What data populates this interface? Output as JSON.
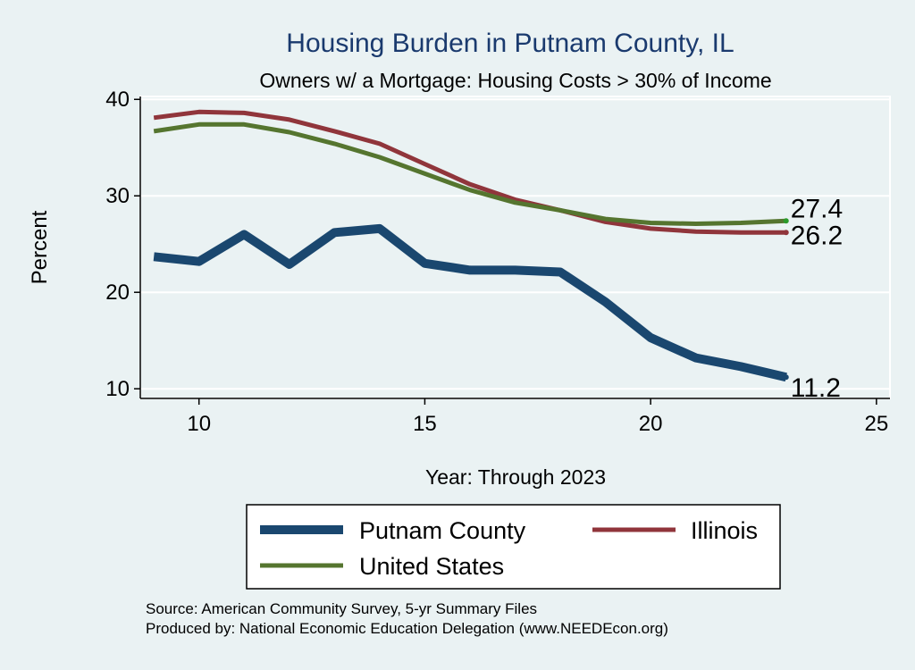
{
  "chart_data": {
    "type": "line",
    "title": "Housing Burden in Putnam County, IL",
    "subtitle": "Owners w/ a Mortgage: Housing Costs > 30% of Income",
    "xlabel": "Year: Through 2023",
    "ylabel": "Percent",
    "xlim": [
      8.7,
      25.3
    ],
    "ylim": [
      9.0,
      40.3
    ],
    "xticks": [
      10,
      15,
      20,
      25
    ],
    "yticks": [
      10,
      20,
      30,
      40
    ],
    "grid": true,
    "legend_position": "bottom",
    "x": [
      9,
      10,
      11,
      12,
      13,
      14,
      15,
      16,
      17,
      18,
      19,
      20,
      21,
      22,
      23
    ],
    "series": [
      {
        "name": "Putnam County",
        "color": "#1a476f",
        "values": [
          23.7,
          23.2,
          26.0,
          22.9,
          26.2,
          26.6,
          23.0,
          22.3,
          22.3,
          22.1,
          19.0,
          15.3,
          13.2,
          12.3,
          11.2
        ],
        "end_label": "11.2"
      },
      {
        "name": "Illinois",
        "color": "#90353b",
        "values": [
          38.1,
          38.7,
          38.6,
          37.9,
          36.7,
          35.4,
          33.3,
          31.2,
          29.6,
          28.5,
          27.3,
          26.6,
          26.3,
          26.2,
          26.2
        ],
        "end_label": "26.2"
      },
      {
        "name": "United States",
        "color": "#55752f",
        "values": [
          36.7,
          37.4,
          37.4,
          36.6,
          35.4,
          34.0,
          32.3,
          30.6,
          29.3,
          28.5,
          27.6,
          27.2,
          27.1,
          27.2,
          27.4
        ],
        "end_label": "27.4"
      }
    ],
    "source_lines": [
      "Source: American Community Survey, 5-yr Summary Files",
      "Produced by: National Economic Education Delegation (www.NEEDEcon.org)"
    ]
  }
}
